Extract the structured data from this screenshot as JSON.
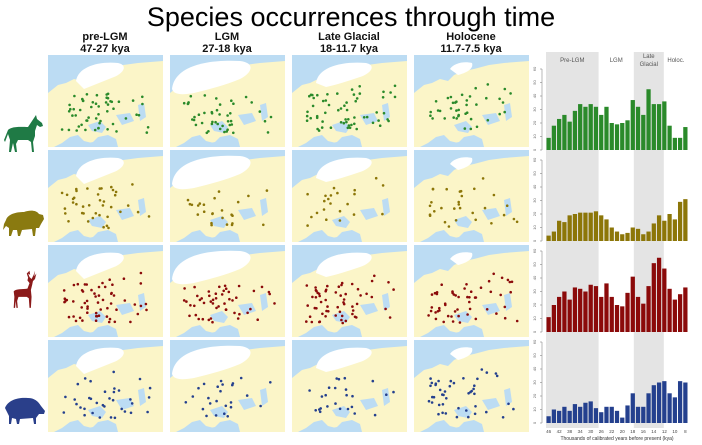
{
  "title": "Species occurrences through time",
  "periods": [
    {
      "name": "pre-LGM",
      "range": "47-27 kya"
    },
    {
      "name": "LGM",
      "range": "27-18 kya"
    },
    {
      "name": "Late Glacial",
      "range": "18-11.7 kya"
    },
    {
      "name": "Holocene",
      "range": "11.7-7.5 kya"
    }
  ],
  "species": [
    {
      "name": "horse",
      "color": "#2a8a2a",
      "silhouette_color": "#1f7a45",
      "dot_counts": [
        55,
        45,
        60,
        40
      ]
    },
    {
      "name": "bison",
      "color": "#8c7608",
      "silhouette_color": "#8a7a10",
      "dot_counts": [
        40,
        25,
        22,
        30
      ]
    },
    {
      "name": "red deer",
      "color": "#8b0a0a",
      "silhouette_color": "#8b1a1a",
      "dot_counts": [
        60,
        50,
        60,
        55
      ]
    },
    {
      "name": "wild boar",
      "color": "#24408e",
      "silhouette_color": "#2a3f8a",
      "dot_counts": [
        35,
        25,
        25,
        45
      ]
    }
  ],
  "chart_data": {
    "type": "bar",
    "xlabel": "Thousands of calibrated years before present (kya)",
    "x_tick_labels": [
      "46",
      "42",
      "38",
      "34",
      "30",
      "26",
      "22",
      "20",
      "18",
      "16",
      "14",
      "12",
      "10",
      "8"
    ],
    "ylim": [
      0,
      60
    ],
    "y_ticks": [
      0,
      10,
      20,
      30,
      40,
      50,
      60
    ],
    "shaded_periods": [
      {
        "label": "Pre-LGM",
        "bins": [
          0,
          10
        ],
        "shaded": true
      },
      {
        "label": "LGM",
        "bins": [
          10,
          16.7
        ],
        "shaded": false
      },
      {
        "label": "Late Glacial",
        "label_lines": [
          "Late",
          "Glacial"
        ],
        "bins": [
          16.7,
          22.4
        ],
        "shaded": true
      },
      {
        "label": "Holoc.",
        "bins": [
          22.4,
          27
        ],
        "shaded": false
      }
    ],
    "series": [
      {
        "name": "horse",
        "color": "#2a8a2a",
        "values": [
          9,
          18,
          23,
          26,
          21,
          29,
          34,
          32,
          34,
          32,
          26,
          32,
          20,
          19,
          20,
          22,
          37,
          32,
          26,
          45,
          34,
          34,
          36,
          18,
          9,
          9,
          17
        ]
      },
      {
        "name": "bison",
        "color": "#8c7608",
        "values": [
          4,
          7,
          15,
          14,
          19,
          20,
          21,
          21,
          21,
          22,
          19,
          16,
          10,
          7,
          5,
          6,
          10,
          9,
          5,
          7,
          13,
          19,
          15,
          20,
          16,
          29,
          31
        ]
      },
      {
        "name": "red deer",
        "color": "#8b0a0a",
        "values": [
          11,
          20,
          26,
          30,
          24,
          33,
          32,
          30,
          35,
          34,
          26,
          36,
          26,
          20,
          19,
          29,
          41,
          26,
          21,
          34,
          51,
          55,
          47,
          32,
          24,
          28,
          33
        ]
      },
      {
        "name": "wild boar",
        "color": "#24408e",
        "values": [
          5,
          10,
          9,
          12,
          9,
          14,
          12,
          15,
          16,
          11,
          8,
          12,
          12,
          9,
          4,
          13,
          22,
          12,
          12,
          22,
          28,
          30,
          31,
          22,
          19,
          31,
          30
        ]
      }
    ]
  }
}
